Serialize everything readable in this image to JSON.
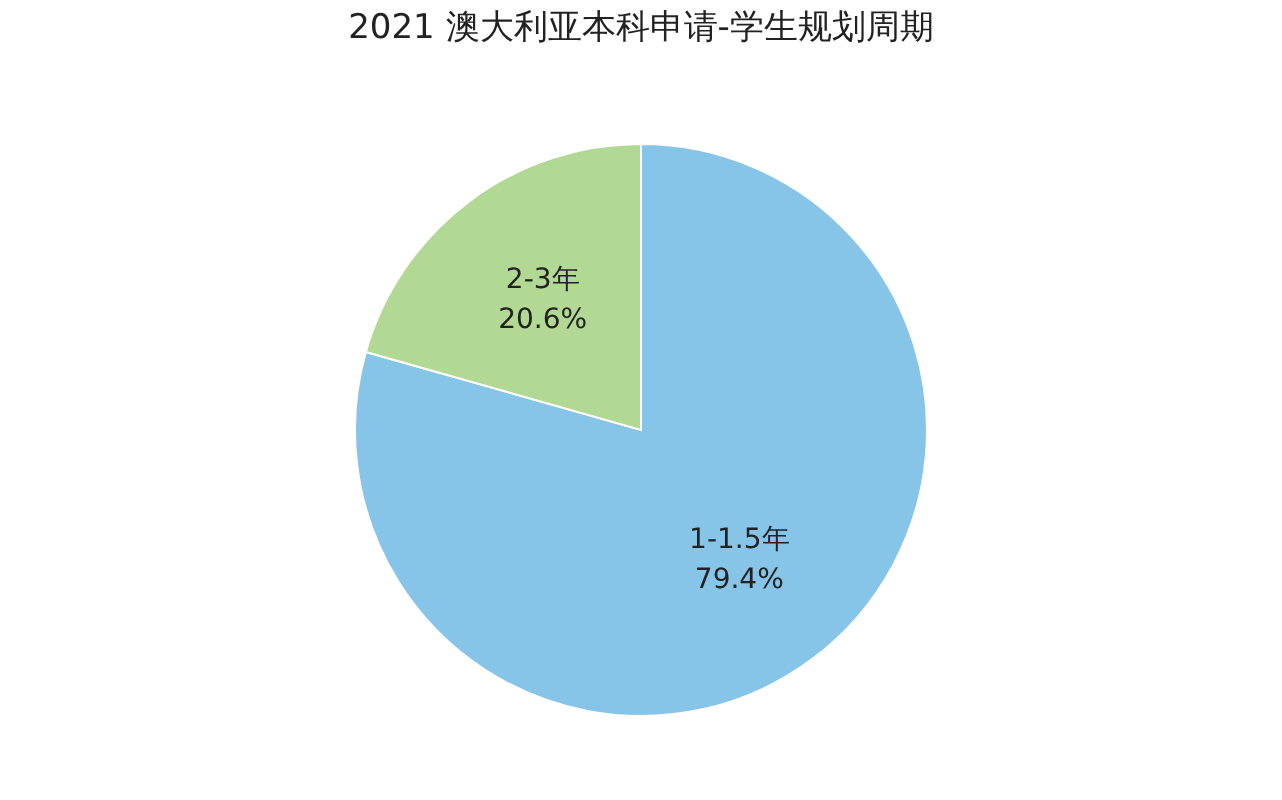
{
  "chart_data": {
    "type": "pie",
    "title": "2021 澳大利亚本科申请-学生规划周期",
    "categories": [
      "1-1.5年",
      "2-3年"
    ],
    "values": [
      79.4,
      20.6
    ],
    "colors": [
      "#86c4e8",
      "#b2d994"
    ],
    "value_labels": [
      "79.4%",
      "20.6%"
    ],
    "legend": false
  }
}
